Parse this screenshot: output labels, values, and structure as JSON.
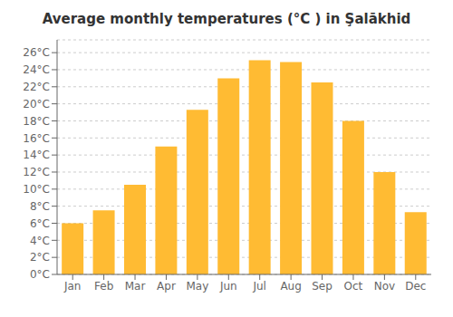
{
  "chart_data": {
    "type": "bar",
    "title": "Average monthly temperatures (°C ) in Şalākhid",
    "categories": [
      "Jan",
      "Feb",
      "Mar",
      "Apr",
      "May",
      "Jun",
      "Jul",
      "Aug",
      "Sep",
      "Oct",
      "Nov",
      "Dec"
    ],
    "values": [
      6,
      7.5,
      10.5,
      15,
      19.3,
      23,
      25.1,
      24.9,
      22.5,
      18,
      12,
      7.3
    ],
    "color": "#FFBB33",
    "ylim": [
      0,
      27.5
    ],
    "yticks": [
      {
        "value": 0,
        "label": "0°C"
      },
      {
        "value": 2,
        "label": "2°C"
      },
      {
        "value": 4,
        "label": "4°C"
      },
      {
        "value": 6,
        "label": "6°C"
      },
      {
        "value": 8,
        "label": "8°C"
      },
      {
        "value": 10,
        "label": "10°C"
      },
      {
        "value": 12,
        "label": "12°C"
      },
      {
        "value": 14,
        "label": "14°C"
      },
      {
        "value": 16,
        "label": "16°C"
      },
      {
        "value": 18,
        "label": "18°C"
      },
      {
        "value": 20,
        "label": "20°C"
      },
      {
        "value": 22,
        "label": "22°C"
      },
      {
        "value": 24,
        "label": "24°C"
      },
      {
        "value": 26,
        "label": "26°C"
      }
    ],
    "grid": true
  }
}
